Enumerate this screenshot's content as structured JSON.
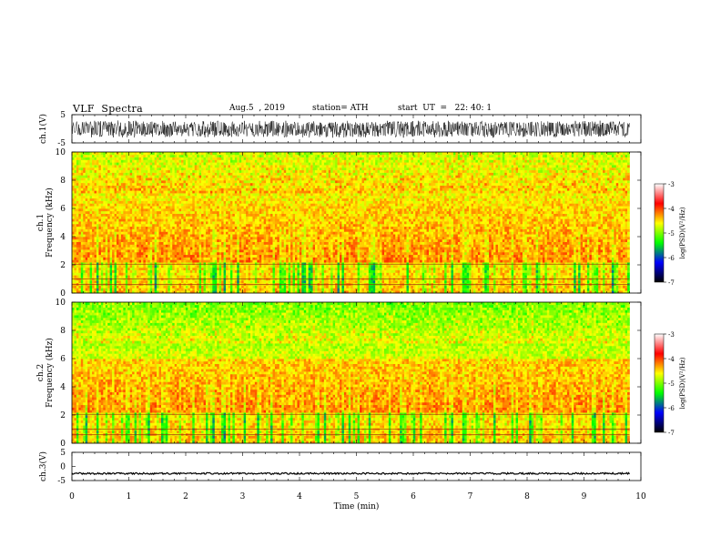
{
  "header": {
    "title": "VLF  Spectra",
    "date": "Aug.5  , 2019",
    "station": "station= ATH",
    "start_ut": "start  UT  =   22: 40: 1"
  },
  "chart_data": [
    {
      "type": "line",
      "panel": "ch1-waveform",
      "ylabel": "ch.1(V)",
      "ylim": [
        -5,
        5
      ],
      "yticks": [
        "5",
        "-5"
      ],
      "xlim": [
        0,
        10
      ],
      "x_end": 9.8,
      "amplitude_range": [
        -3.2,
        3.0
      ]
    },
    {
      "type": "heatmap",
      "panel": "ch1-spectrogram",
      "ylabel": "Frequency  (kHz)",
      "ylabel_channel": "ch.1",
      "ylim": [
        0,
        10
      ],
      "yticks": [
        "0",
        "2",
        "4",
        "6",
        "8",
        "10"
      ],
      "xlim": [
        0,
        10
      ],
      "x_end": 9.8,
      "colorbar": {
        "label": "log(PSD)(V²/Hz)",
        "ticks": [
          "-3",
          "-4",
          "-5",
          "-6",
          "-7"
        ],
        "range": [
          -7,
          -3
        ],
        "colors": [
          "#000000",
          "#0000ff",
          "#00ff00",
          "#ffff00",
          "#ff0000",
          "#ffffff"
        ]
      }
    },
    {
      "type": "heatmap",
      "panel": "ch2-spectrogram",
      "ylabel": "Frequency  (kHz)",
      "ylabel_channel": "ch.2",
      "ylim": [
        0,
        10
      ],
      "yticks": [
        "0",
        "2",
        "4",
        "6",
        "8",
        "10"
      ],
      "xlim": [
        0,
        10
      ],
      "x_end": 9.8,
      "colorbar": {
        "label": "log(PSD)(V²/Hz)",
        "ticks": [
          "-3",
          "-4",
          "-5",
          "-6",
          "-7"
        ],
        "range": [
          -7,
          -3
        ],
        "colors": [
          "#000000",
          "#0000ff",
          "#00ff00",
          "#ffff00",
          "#ff0000",
          "#ffffff"
        ]
      }
    },
    {
      "type": "line",
      "panel": "ch3-waveform",
      "ylabel": "ch.3(V)",
      "ylim": [
        -5,
        5
      ],
      "yticks": [
        "5",
        "0",
        "-5"
      ],
      "xlim": [
        0,
        10
      ],
      "x_end": 9.8,
      "level": -2.5,
      "xlabel": "Time  (min)",
      "xticks": [
        "0",
        "1",
        "2",
        "3",
        "4",
        "5",
        "6",
        "7",
        "8",
        "9",
        "10"
      ]
    }
  ]
}
